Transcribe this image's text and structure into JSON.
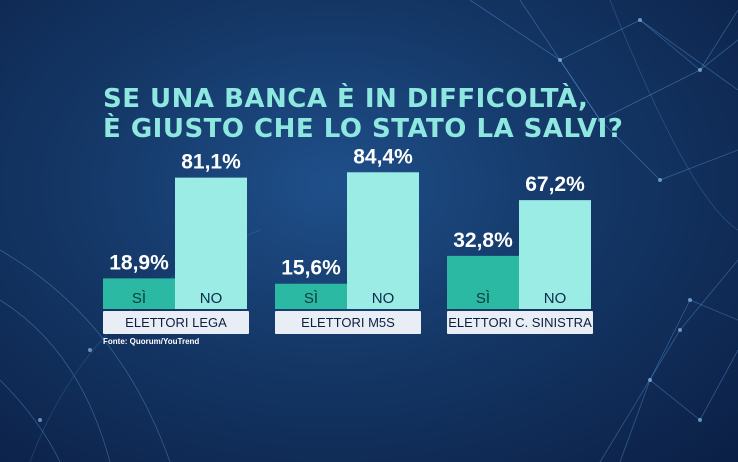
{
  "title_lines": [
    "SE UNA BANCA È IN DIFFICOLTÀ,",
    "È GIUSTO CHE LO STATO LA SALVI?"
  ],
  "source": "Fonte: Quorum/YouTrend",
  "colors": {
    "yes": "#2bb9a3",
    "no": "#9bece4",
    "title": "#8fe8df",
    "label_bg": "#e8edf6"
  },
  "chart_data": {
    "type": "bar",
    "title": "SE UNA BANCA È IN DIFFICOLTÀ, È GIUSTO CHE LO STATO LA SALVI?",
    "categories": [
      "ELETTORI LEGA",
      "ELETTORI M5S",
      "ELETTORI C. SINISTRA"
    ],
    "series": [
      {
        "name": "SÌ",
        "values": [
          18.9,
          15.6,
          32.8
        ],
        "labels": [
          "18,9%",
          "15,6%",
          "32,8%"
        ]
      },
      {
        "name": "NO",
        "values": [
          81.1,
          84.4,
          67.2
        ],
        "labels": [
          "81,1%",
          "84,4%",
          "67,2%"
        ]
      }
    ],
    "ylim": [
      0,
      100
    ],
    "grid": false,
    "legend": "none"
  }
}
